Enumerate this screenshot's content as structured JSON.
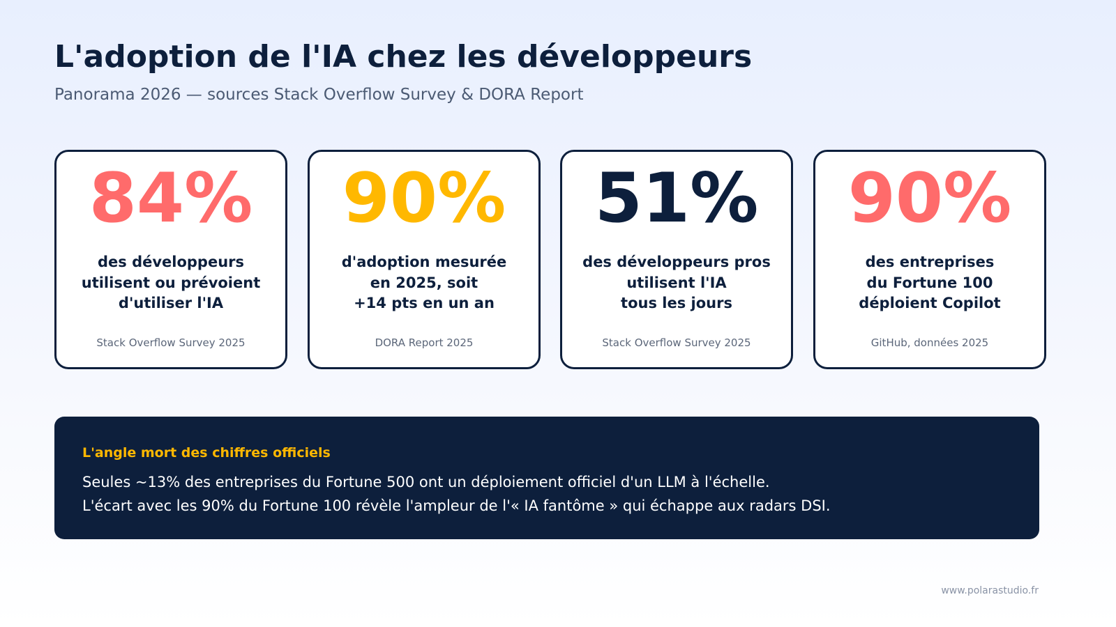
{
  "header": {
    "title": "L'adoption de l'IA chez les développeurs",
    "subtitle": "Panorama 2026 — sources Stack Overflow Survey & DORA Report"
  },
  "cards": [
    {
      "value": "84%",
      "color": "#ff6b6b",
      "description": "des développeurs\nutilisent ou prévoient\nd'utiliser l'IA",
      "source": "Stack Overflow Survey 2025"
    },
    {
      "value": "90%",
      "color": "#ffb800",
      "description": "d'adoption mesurée\nen 2025, soit\n+14 pts en un an",
      "source": "DORA Report 2025"
    },
    {
      "value": "51%",
      "color": "#0d1f3c",
      "description": "des développeurs pros\nutilisent l'IA\ntous les jours",
      "source": "Stack Overflow Survey 2025"
    },
    {
      "value": "90%",
      "color": "#ff6b6b",
      "description": "des entreprises\ndu Fortune 100\ndéploient Copilot",
      "source": "GitHub, données 2025"
    }
  ],
  "callout": {
    "title": "L'angle mort des chiffres officiels",
    "lines": [
      "Seules ~13% des entreprises du Fortune 500 ont un déploiement officiel d'un LLM à l'échelle.",
      "L'écart avec les 90% du Fortune 100 révèle l'ampleur de l'« IA fantôme » qui échappe aux radars DSI."
    ]
  },
  "footer": {
    "url": "www.polarastudio.fr"
  }
}
